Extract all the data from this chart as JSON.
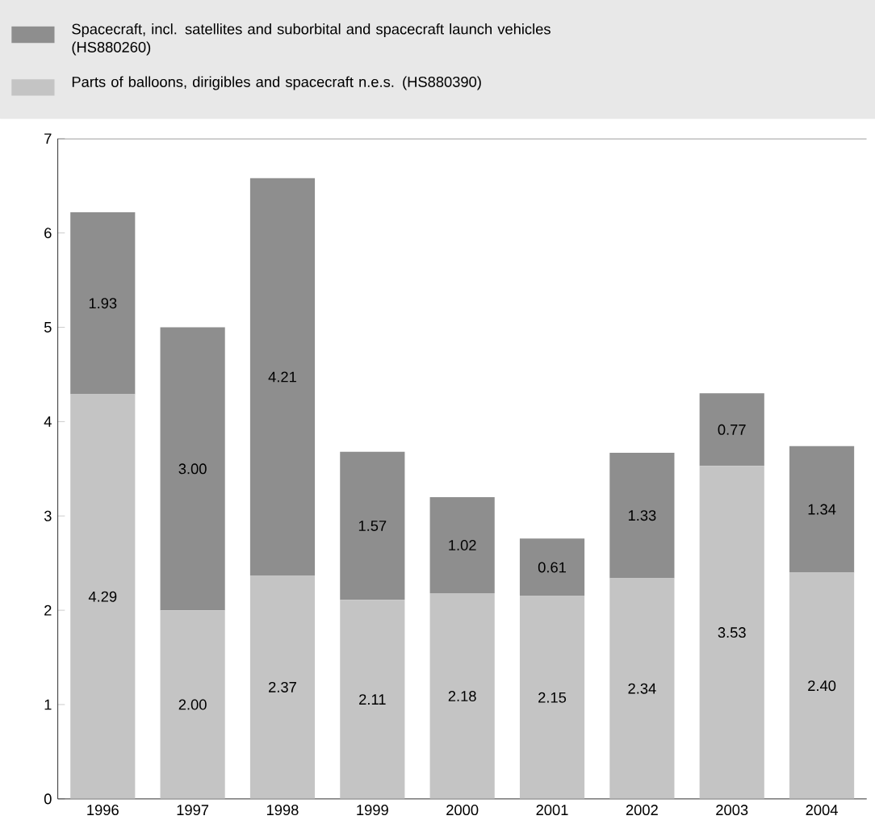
{
  "chart_data": {
    "type": "bar",
    "stacked": true,
    "categories": [
      "1996",
      "1997",
      "1998",
      "1999",
      "2000",
      "2001",
      "2002",
      "2003",
      "2004"
    ],
    "series": [
      {
        "name": "Parts of balloons, dirigibles and spacecraft n.e.s. (HS880390)",
        "color": "#c4c4c4",
        "values": [
          4.29,
          2.0,
          2.37,
          2.11,
          2.18,
          2.15,
          2.34,
          3.53,
          2.4
        ],
        "value_labels": [
          "4.29",
          "2.00",
          "2.37",
          "2.11",
          "2.18",
          "2.15",
          "2.34",
          "3.53",
          "2.40"
        ]
      },
      {
        "name": "Spacecraft, incl. satellites and suborbital and spacecraft launch vehicles (HS880260)",
        "color": "#8e8e8e",
        "values": [
          1.93,
          3.0,
          4.21,
          1.57,
          1.02,
          0.61,
          1.33,
          0.77,
          1.34
        ],
        "value_labels": [
          "1.93",
          "3.00",
          "4.21",
          "1.57",
          "1.02",
          "0.61",
          "1.33",
          "0.77",
          "1.34"
        ]
      }
    ],
    "ylim": [
      0,
      7
    ],
    "yticks": [
      0,
      1,
      2,
      3,
      4,
      5,
      6,
      7
    ],
    "legend": "top",
    "grid": false
  }
}
